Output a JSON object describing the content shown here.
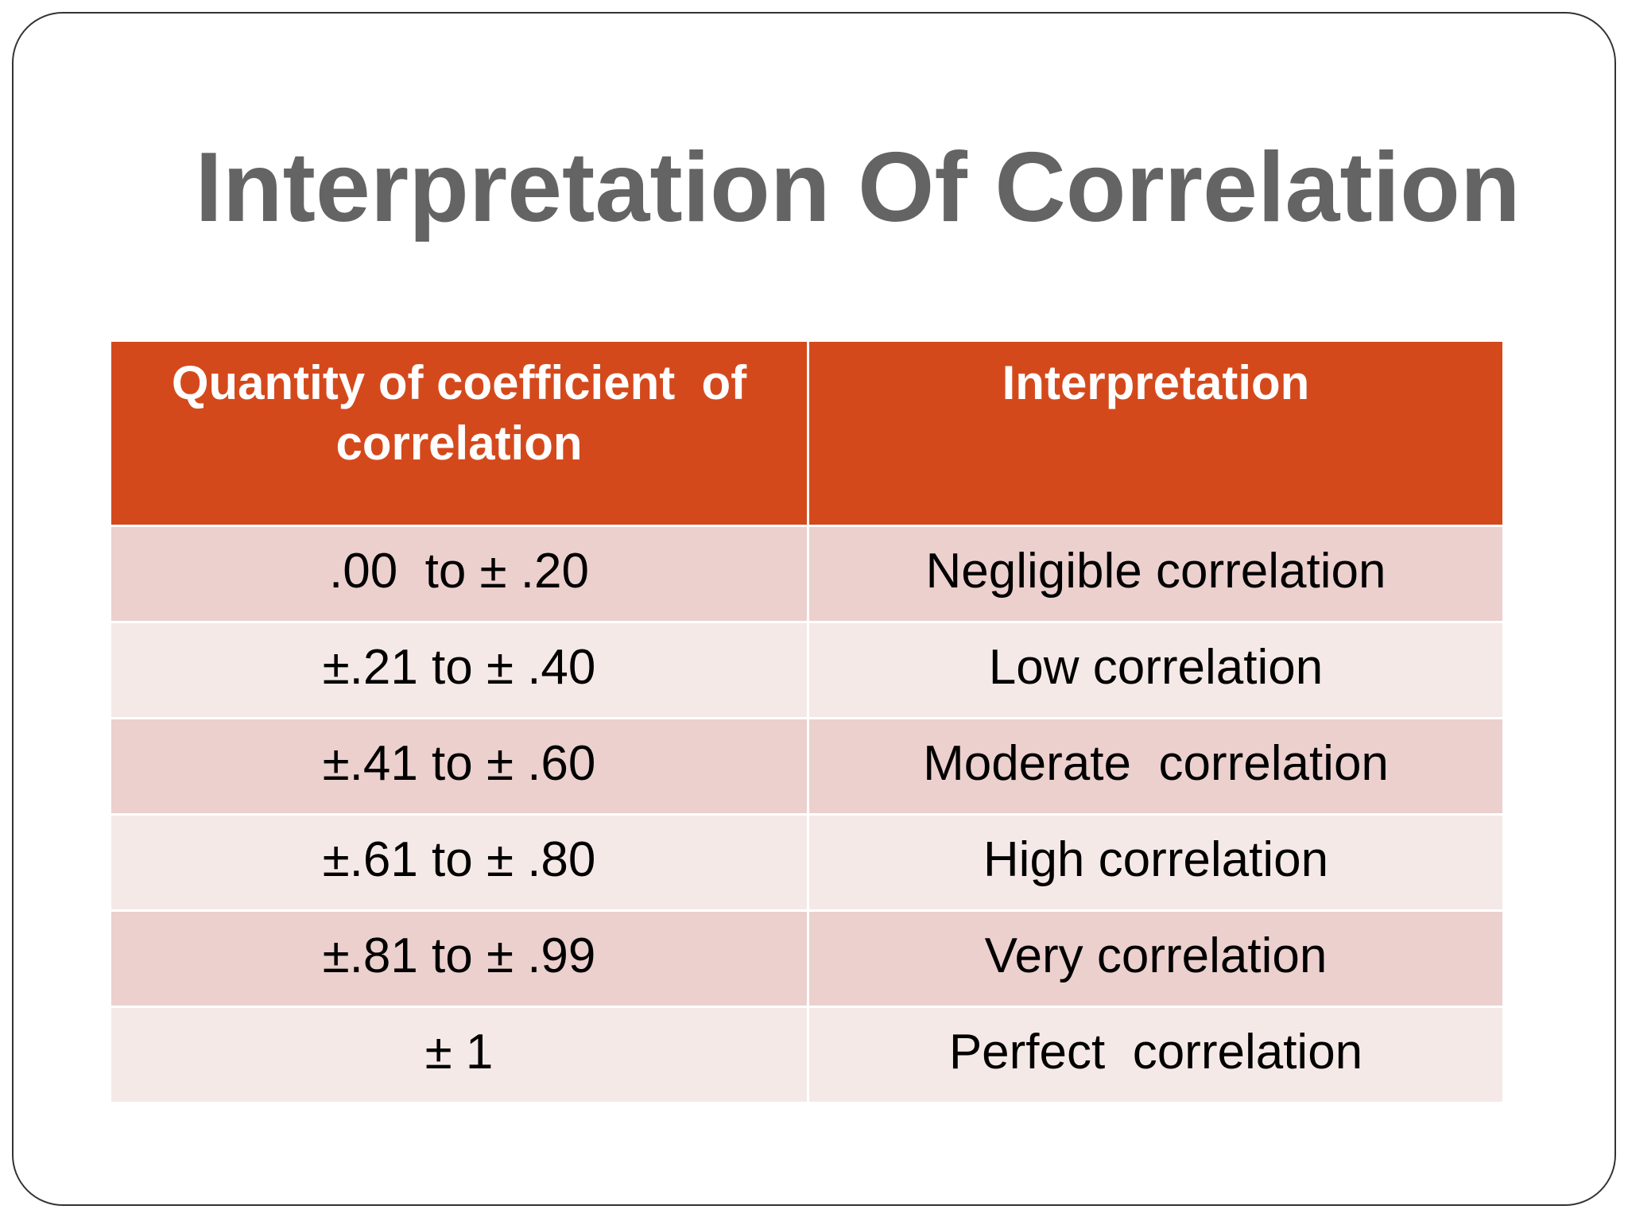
{
  "title": "Interpretation Of Correlation",
  "table": {
    "header": [
      "Quantity of coefficient  of correlation",
      "Interpretation"
    ],
    "rows": [
      [
        ".00  to ± .20",
        "Negligible correlation"
      ],
      [
        "±.21 to ± .40",
        "Low correlation"
      ],
      [
        "±.41 to ± .60",
        "Moderate  correlation"
      ],
      [
        "±.61 to ± .80",
        "High correlation"
      ],
      [
        "±.81 to ± .99",
        "Very correlation"
      ],
      [
        "± 1",
        "Perfect  correlation"
      ]
    ]
  }
}
